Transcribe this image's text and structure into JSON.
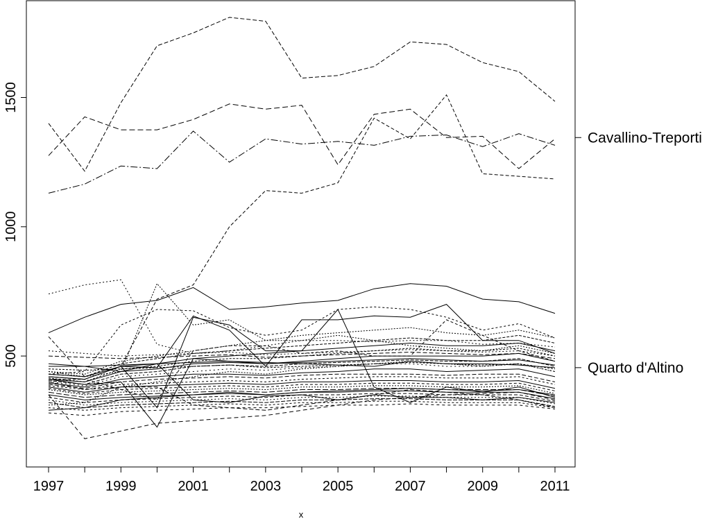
{
  "chart_data": {
    "type": "line",
    "title": "",
    "xlabel": "x",
    "ylabel": "",
    "xlim": [
      1997,
      2011
    ],
    "ylim": [
      140,
      1830
    ],
    "x": [
      1997,
      1998,
      1999,
      2000,
      2001,
      2002,
      2003,
      2004,
      2005,
      2006,
      2007,
      2008,
      2009,
      2010,
      2011
    ],
    "x_ticks": [
      "1997",
      "1999",
      "2001",
      "2003",
      "2005",
      "2007",
      "2009",
      "2011"
    ],
    "x_minor_ticks": [
      1998,
      2000,
      2002,
      2004,
      2006,
      2008,
      2010
    ],
    "y_ticks": [
      "500",
      "1000",
      "1500"
    ],
    "y_tick_values": [
      500,
      1000,
      1500
    ],
    "right_labels": [
      {
        "text": "Cavallino-Treporti",
        "value": 1345
      },
      {
        "text": "Quarto d'Altino",
        "value": 455
      }
    ],
    "grid": false,
    "legend": "none",
    "line_color": "#000000",
    "series": [
      {
        "values": [
          1400,
          1215,
          1480,
          1700,
          1750,
          1810,
          1795,
          1575,
          1585,
          1620,
          1715,
          1705,
          1635,
          1600,
          1485
        ],
        "dash": "6,3"
      },
      {
        "values": [
          1275,
          1425,
          1375,
          1375,
          1415,
          1475,
          1455,
          1470,
          1240,
          1435,
          1455,
          1345,
          1350,
          1225,
          1340
        ],
        "dash": "8,4"
      },
      {
        "values": [
          1130,
          1165,
          1235,
          1225,
          1370,
          1250,
          1340,
          1320,
          1330,
          1315,
          1350,
          1355,
          1310,
          1360,
          1315
        ],
        "dash": "10,3,2,3"
      },
      {
        "values": [
          575,
          420,
          460,
          720,
          775,
          1000,
          1140,
          1130,
          1170,
          1420,
          1340,
          1510,
          1205,
          1195,
          1185
        ],
        "dash": "5,3"
      },
      {
        "values": [
          590,
          650,
          700,
          715,
          765,
          680,
          690,
          705,
          715,
          760,
          780,
          770,
          720,
          710,
          665
        ],
        "dash": ""
      },
      {
        "values": [
          740,
          775,
          795,
          545,
          510,
          520,
          540,
          560,
          560,
          555,
          560,
          560,
          545,
          550,
          535
        ],
        "dash": "2,3"
      },
      {
        "values": [
          430,
          440,
          620,
          680,
          675,
          610,
          580,
          600,
          680,
          690,
          680,
          650,
          600,
          625,
          570
        ],
        "dash": "3,3"
      },
      {
        "values": [
          420,
          410,
          460,
          455,
          655,
          600,
          460,
          640,
          640,
          655,
          650,
          700,
          560,
          560,
          510
        ],
        "dash": ""
      },
      {
        "values": [
          410,
          390,
          400,
          225,
          490,
          480,
          475,
          470,
          465,
          460,
          480,
          470,
          470,
          465,
          455
        ],
        "dash": ""
      },
      {
        "values": [
          350,
          180,
          210,
          240,
          250,
          260,
          270,
          290,
          310,
          330,
          340,
          350,
          355,
          360,
          330
        ],
        "dash": "6,4"
      },
      {
        "values": [
          400,
          370,
          380,
          380,
          310,
          300,
          290,
          310,
          330,
          350,
          370,
          360,
          350,
          330,
          300
        ],
        "dash": "6,3"
      },
      {
        "values": [
          440,
          430,
          480,
          500,
          520,
          540,
          560,
          580,
          590,
          600,
          610,
          590,
          580,
          600,
          570
        ],
        "dash": "2,2"
      },
      {
        "values": [
          430,
          420,
          470,
          490,
          510,
          520,
          530,
          540,
          550,
          560,
          570,
          560,
          560,
          580,
          550
        ],
        "dash": "4,2"
      },
      {
        "values": [
          420,
          410,
          460,
          470,
          490,
          500,
          510,
          520,
          530,
          540,
          550,
          540,
          540,
          550,
          520
        ],
        "dash": ""
      },
      {
        "values": [
          415,
          400,
          450,
          460,
          480,
          490,
          490,
          500,
          510,
          520,
          530,
          520,
          520,
          530,
          500
        ],
        "dash": "3,2"
      },
      {
        "values": [
          410,
          400,
          440,
          450,
          470,
          475,
          470,
          480,
          490,
          500,
          500,
          500,
          500,
          510,
          480
        ],
        "dash": ""
      },
      {
        "values": [
          405,
          390,
          430,
          440,
          460,
          465,
          460,
          470,
          475,
          480,
          485,
          480,
          480,
          490,
          460
        ],
        "dash": "5,2"
      },
      {
        "values": [
          400,
          385,
          420,
          430,
          440,
          450,
          445,
          455,
          460,
          470,
          470,
          460,
          460,
          470,
          440
        ],
        "dash": "2,4"
      },
      {
        "values": [
          395,
          380,
          410,
          420,
          430,
          430,
          425,
          435,
          440,
          450,
          450,
          440,
          445,
          450,
          420
        ],
        "dash": ""
      },
      {
        "values": [
          390,
          375,
          400,
          410,
          415,
          420,
          415,
          425,
          430,
          430,
          430,
          425,
          430,
          430,
          400
        ],
        "dash": "6,3"
      },
      {
        "values": [
          385,
          370,
          390,
          395,
          400,
          405,
          400,
          410,
          415,
          420,
          420,
          415,
          415,
          420,
          390
        ],
        "dash": "3,3"
      },
      {
        "values": [
          380,
          360,
          380,
          385,
          390,
          395,
          390,
          400,
          400,
          405,
          405,
          400,
          400,
          405,
          375
        ],
        "dash": ""
      },
      {
        "values": [
          375,
          355,
          370,
          375,
          380,
          385,
          380,
          390,
          390,
          395,
          395,
          390,
          390,
          395,
          365
        ],
        "dash": "4,3"
      },
      {
        "values": [
          370,
          350,
          360,
          365,
          370,
          375,
          370,
          380,
          380,
          385,
          385,
          380,
          380,
          385,
          355
        ],
        "dash": "2,2"
      },
      {
        "values": [
          360,
          340,
          350,
          355,
          360,
          365,
          360,
          370,
          370,
          375,
          375,
          370,
          370,
          370,
          345
        ],
        "dash": "8,3"
      },
      {
        "values": [
          350,
          330,
          340,
          345,
          350,
          355,
          350,
          360,
          360,
          365,
          365,
          360,
          360,
          360,
          335
        ],
        "dash": ""
      },
      {
        "values": [
          340,
          320,
          330,
          335,
          340,
          345,
          340,
          350,
          350,
          355,
          355,
          350,
          350,
          350,
          325
        ],
        "dash": "5,3"
      },
      {
        "values": [
          330,
          310,
          320,
          325,
          330,
          335,
          330,
          340,
          340,
          345,
          345,
          340,
          340,
          340,
          315
        ],
        "dash": "2,3"
      },
      {
        "values": [
          320,
          300,
          310,
          315,
          320,
          325,
          320,
          330,
          330,
          335,
          335,
          330,
          330,
          330,
          305
        ],
        "dash": "6,2"
      },
      {
        "values": [
          300,
          290,
          300,
          305,
          310,
          315,
          310,
          320,
          320,
          325,
          325,
          320,
          320,
          320,
          300
        ],
        "dash": "3,3"
      },
      {
        "values": [
          280,
          270,
          285,
          290,
          295,
          300,
          300,
          305,
          310,
          310,
          315,
          310,
          310,
          310,
          295
        ],
        "dash": "4,4"
      },
      {
        "values": [
          290,
          300,
          330,
          340,
          350,
          360,
          350,
          360,
          365,
          370,
          375,
          370,
          365,
          370,
          350
        ],
        "dash": ""
      },
      {
        "values": [
          310,
          320,
          380,
          400,
          420,
          440,
          430,
          450,
          460,
          470,
          480,
          470,
          460,
          470,
          440
        ],
        "dash": "2,2"
      },
      {
        "values": [
          520,
          510,
          500,
          505,
          510,
          515,
          505,
          510,
          515,
          520,
          525,
          520,
          515,
          520,
          500
        ],
        "dash": "2,3"
      },
      {
        "values": [
          500,
          495,
          490,
          495,
          500,
          505,
          495,
          500,
          505,
          510,
          515,
          510,
          505,
          510,
          490
        ],
        "dash": "6,3"
      },
      {
        "values": [
          470,
          460,
          465,
          470,
          475,
          480,
          470,
          475,
          480,
          485,
          490,
          485,
          480,
          485,
          465
        ],
        "dash": ""
      },
      {
        "values": [
          450,
          445,
          450,
          455,
          460,
          465,
          455,
          460,
          465,
          470,
          475,
          470,
          465,
          470,
          450
        ],
        "dash": "3,2"
      },
      {
        "values": [
          460,
          460,
          440,
          470,
          330,
          320,
          345,
          350,
          330,
          350,
          340,
          340,
          330,
          340,
          320
        ],
        "dash": ""
      },
      {
        "values": [
          430,
          420,
          460,
          300,
          650,
          620,
          520,
          520,
          680,
          380,
          320,
          380,
          360,
          380,
          340
        ],
        "dash": ""
      },
      {
        "values": [
          410,
          410,
          370,
          330,
          520,
          540,
          540,
          510,
          520,
          500,
          500,
          640,
          580,
          520,
          480
        ],
        "dash": "4,3"
      },
      {
        "values": [
          440,
          420,
          440,
          780,
          620,
          640,
          560,
          560,
          580,
          560,
          540,
          530,
          520,
          540,
          510
        ],
        "dash": "2,2"
      }
    ]
  }
}
